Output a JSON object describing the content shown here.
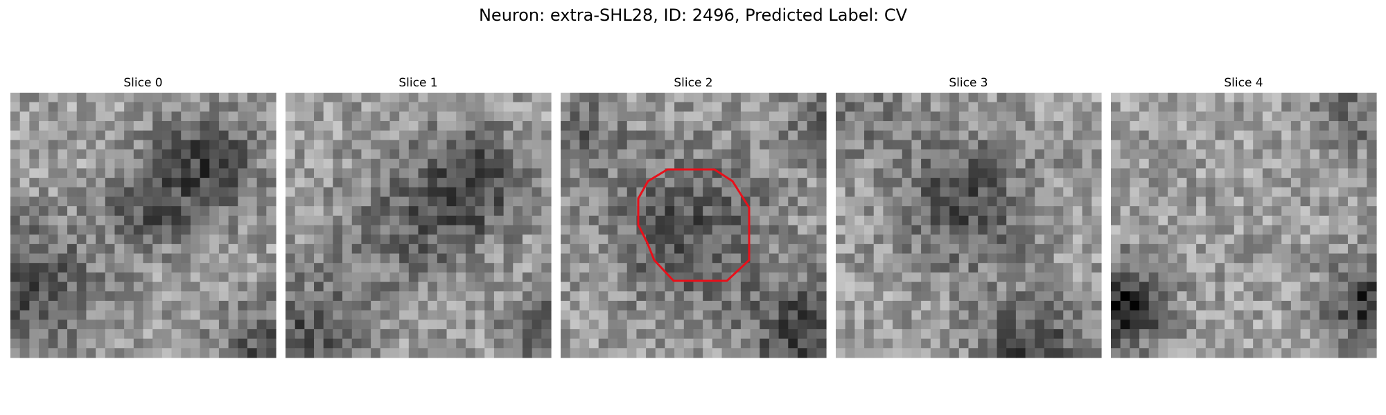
{
  "title": "Neuron: extra-SHL28, ID: 2496, Predicted Label: CV",
  "panels": [
    {
      "label": "Slice 0"
    },
    {
      "label": "Slice 1"
    },
    {
      "label": "Slice 2"
    },
    {
      "label": "Slice 3"
    },
    {
      "label": "Slice 4"
    }
  ]
}
